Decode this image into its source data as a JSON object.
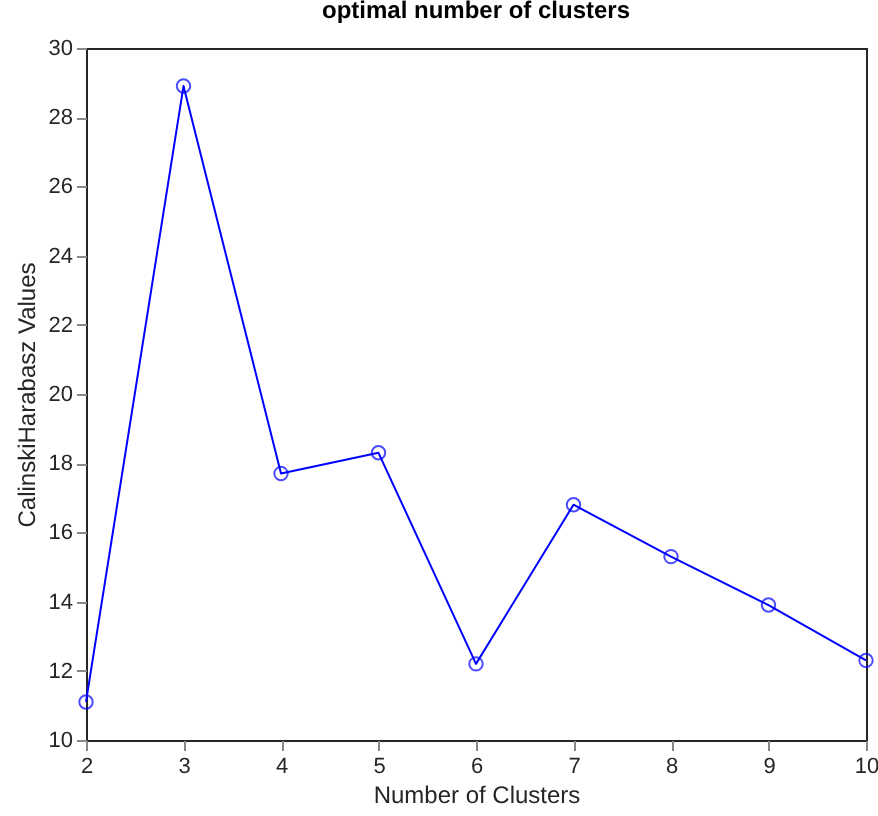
{
  "chart_data": {
    "type": "line",
    "title": "optimal number of clusters",
    "xlabel": "Number of Clusters",
    "ylabel": "CalinskiHarabasz Values",
    "x": [
      2,
      3,
      4,
      5,
      6,
      7,
      8,
      9,
      10
    ],
    "series": [
      {
        "color": "#0000ff",
        "values": [
          11.1,
          28.9,
          17.7,
          18.3,
          12.2,
          16.8,
          15.3,
          13.9,
          12.3
        ]
      }
    ],
    "xlim": [
      2,
      10
    ],
    "xticks": [
      2,
      3,
      4,
      5,
      6,
      7,
      8,
      9,
      10
    ],
    "ylim": [
      10,
      30
    ],
    "yticks": [
      10,
      12,
      14,
      16,
      18,
      20,
      22,
      24,
      26,
      28,
      30
    ],
    "grid": false,
    "legend": false,
    "marker": "circle",
    "line_style": "solid"
  }
}
